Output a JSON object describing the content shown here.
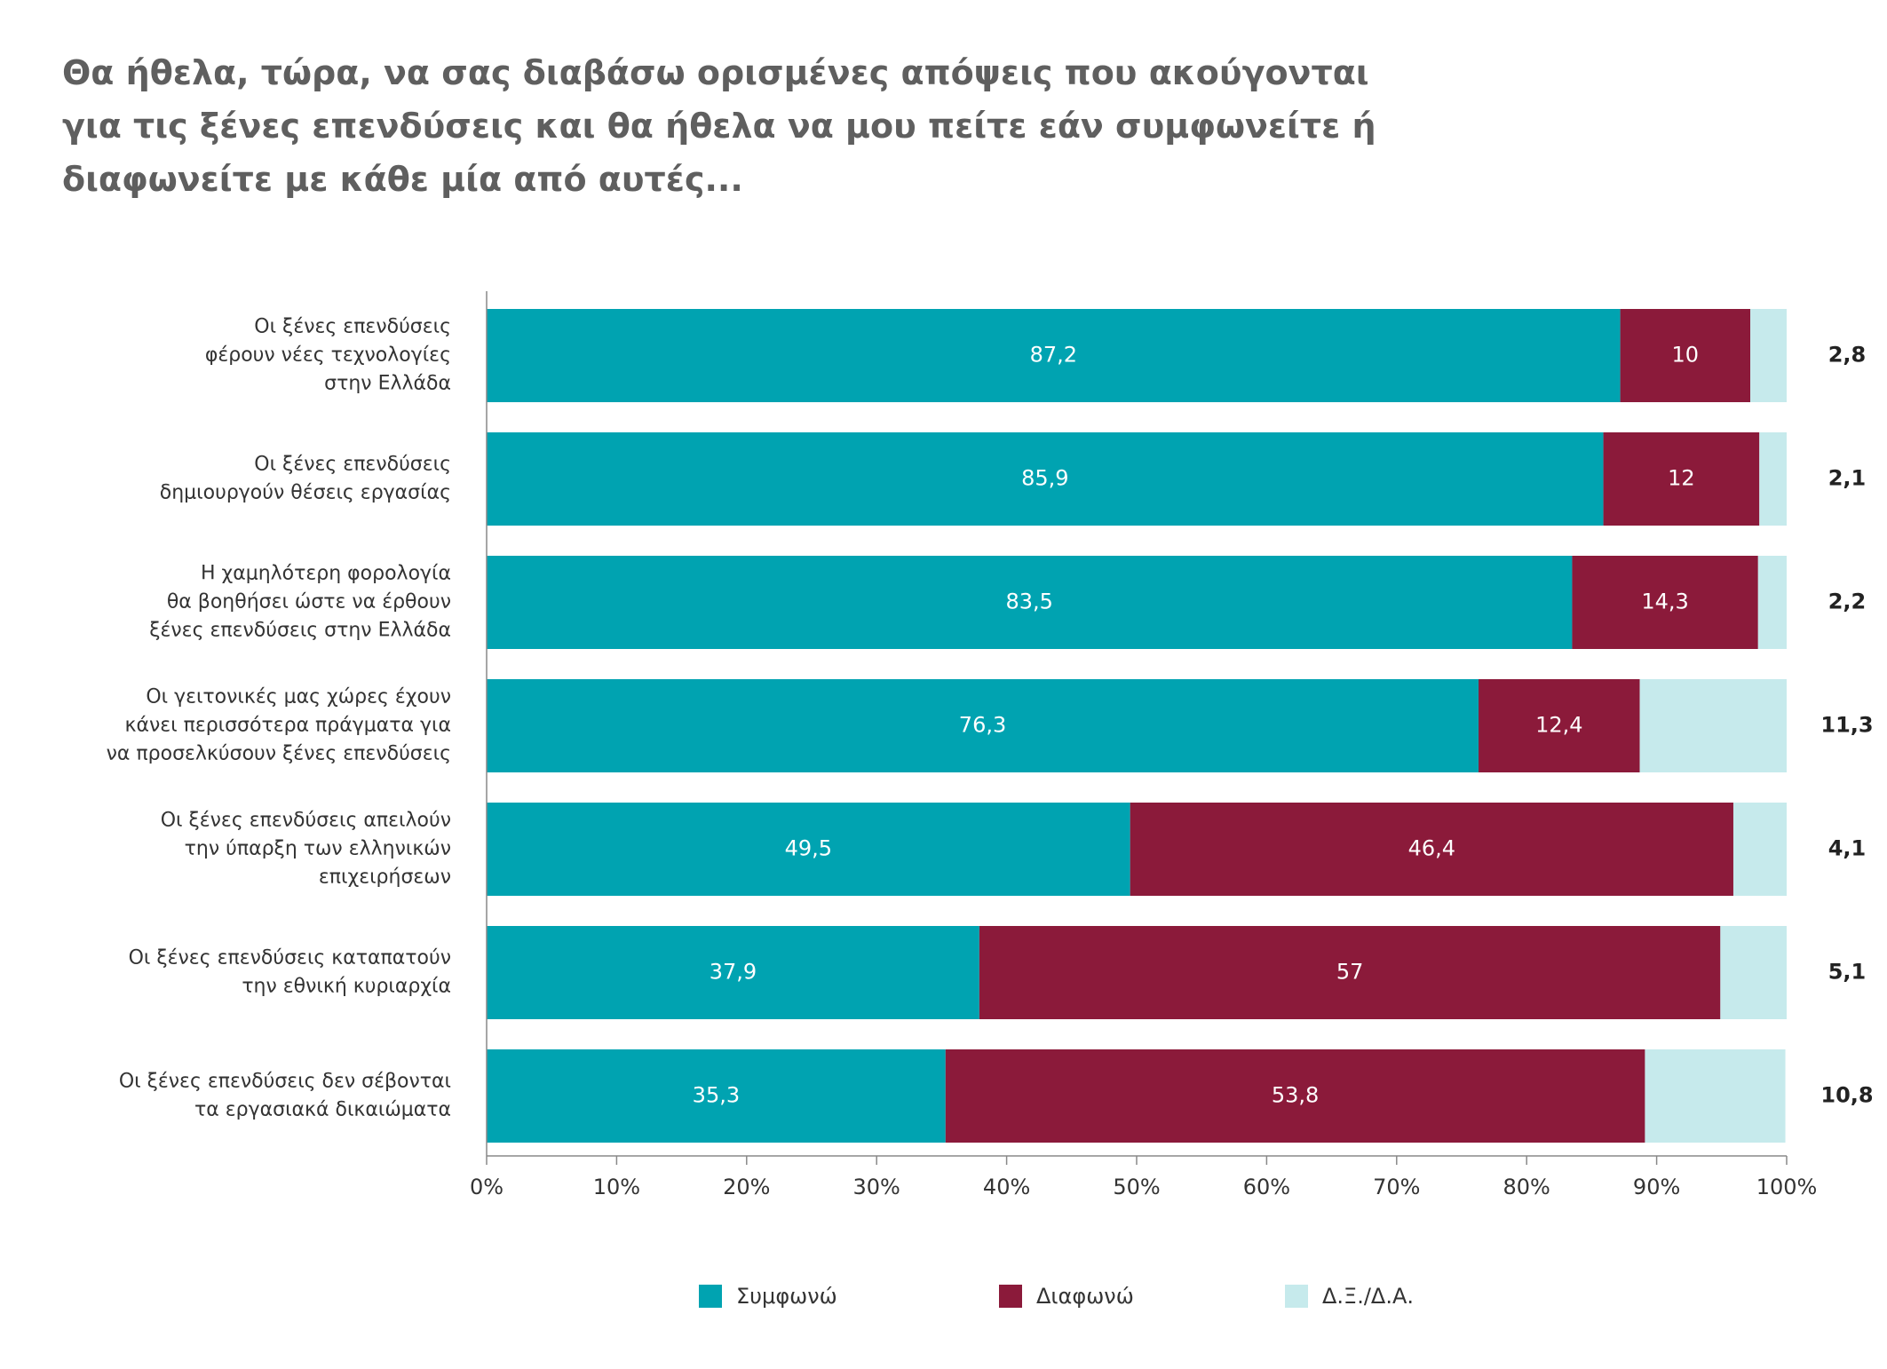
{
  "title_lines": [
    "Θα ήθελα, τώρα, να σας διαβάσω ορισμένες απόψεις που ακούγονται",
    "για τις ξένες επενδύσεις και θα ήθελα να μου πείτε εάν συμφωνείτε ή",
    "διαφωνείτε με κάθε μία από αυτές..."
  ],
  "colors": {
    "agree": "#00a3b1",
    "disagree": "#8b1a3a",
    "dk": "#c6eaec"
  },
  "chart_data": {
    "type": "bar",
    "orientation": "horizontal",
    "stacked": true,
    "categories": [
      [
        "Οι ξένες επενδύσεις",
        "φέρουν νέες τεχνολογίες",
        "στην Ελλάδα"
      ],
      [
        "Οι ξένες επενδύσεις",
        "δημιουργούν θέσεις εργασίας"
      ],
      [
        "Η χαμηλότερη φορολογία",
        "θα βοηθήσει ώστε να έρθουν",
        "ξένες επενδύσεις στην Ελλάδα"
      ],
      [
        "Οι γειτονικές μας χώρες έχουν",
        "κάνει περισσότερα  πράγματα για",
        "να προσελκύσουν  ξένες επενδύσεις"
      ],
      [
        "Οι ξένες επενδύσεις απειλούν",
        "την ύπαρξη των ελληνικών",
        "επιχειρήσεων"
      ],
      [
        "Οι ξένες επενδύσεις καταπατούν",
        "την εθνική κυριαρχία"
      ],
      [
        "Οι ξένες επενδύσεις δεν σέβονται",
        "τα εργασιακά δικαιώματα"
      ]
    ],
    "series": [
      {
        "name": "Συμφωνώ",
        "color": "#00a3b1",
        "values": [
          87.2,
          85.9,
          83.5,
          76.3,
          49.5,
          37.9,
          35.3
        ],
        "labels": [
          "87,2",
          "85,9",
          "83,5",
          "76,3",
          "49,5",
          "37,9",
          "35,3"
        ]
      },
      {
        "name": "Διαφωνώ",
        "color": "#8b1a3a",
        "values": [
          10,
          12,
          14.3,
          12.4,
          46.4,
          57,
          53.8
        ],
        "labels": [
          "10",
          "12",
          "14,3",
          "12,4",
          "46,4",
          "57",
          "53,8"
        ]
      },
      {
        "name": "Δ.Ξ./Δ.Α.",
        "color": "#c6eaec",
        "values": [
          2.8,
          2.1,
          2.2,
          11.3,
          4.1,
          5.1,
          10.8
        ],
        "labels": [
          "2,8",
          "2,1",
          "2,2",
          "11,3",
          "4,1",
          "5,1",
          "10,8"
        ]
      }
    ],
    "xlim": [
      0,
      100
    ],
    "xticks": [
      "0%",
      "10%",
      "20%",
      "30%",
      "40%",
      "50%",
      "60%",
      "70%",
      "80%",
      "90%",
      "100%"
    ],
    "legend_position": "bottom",
    "grid": false
  }
}
